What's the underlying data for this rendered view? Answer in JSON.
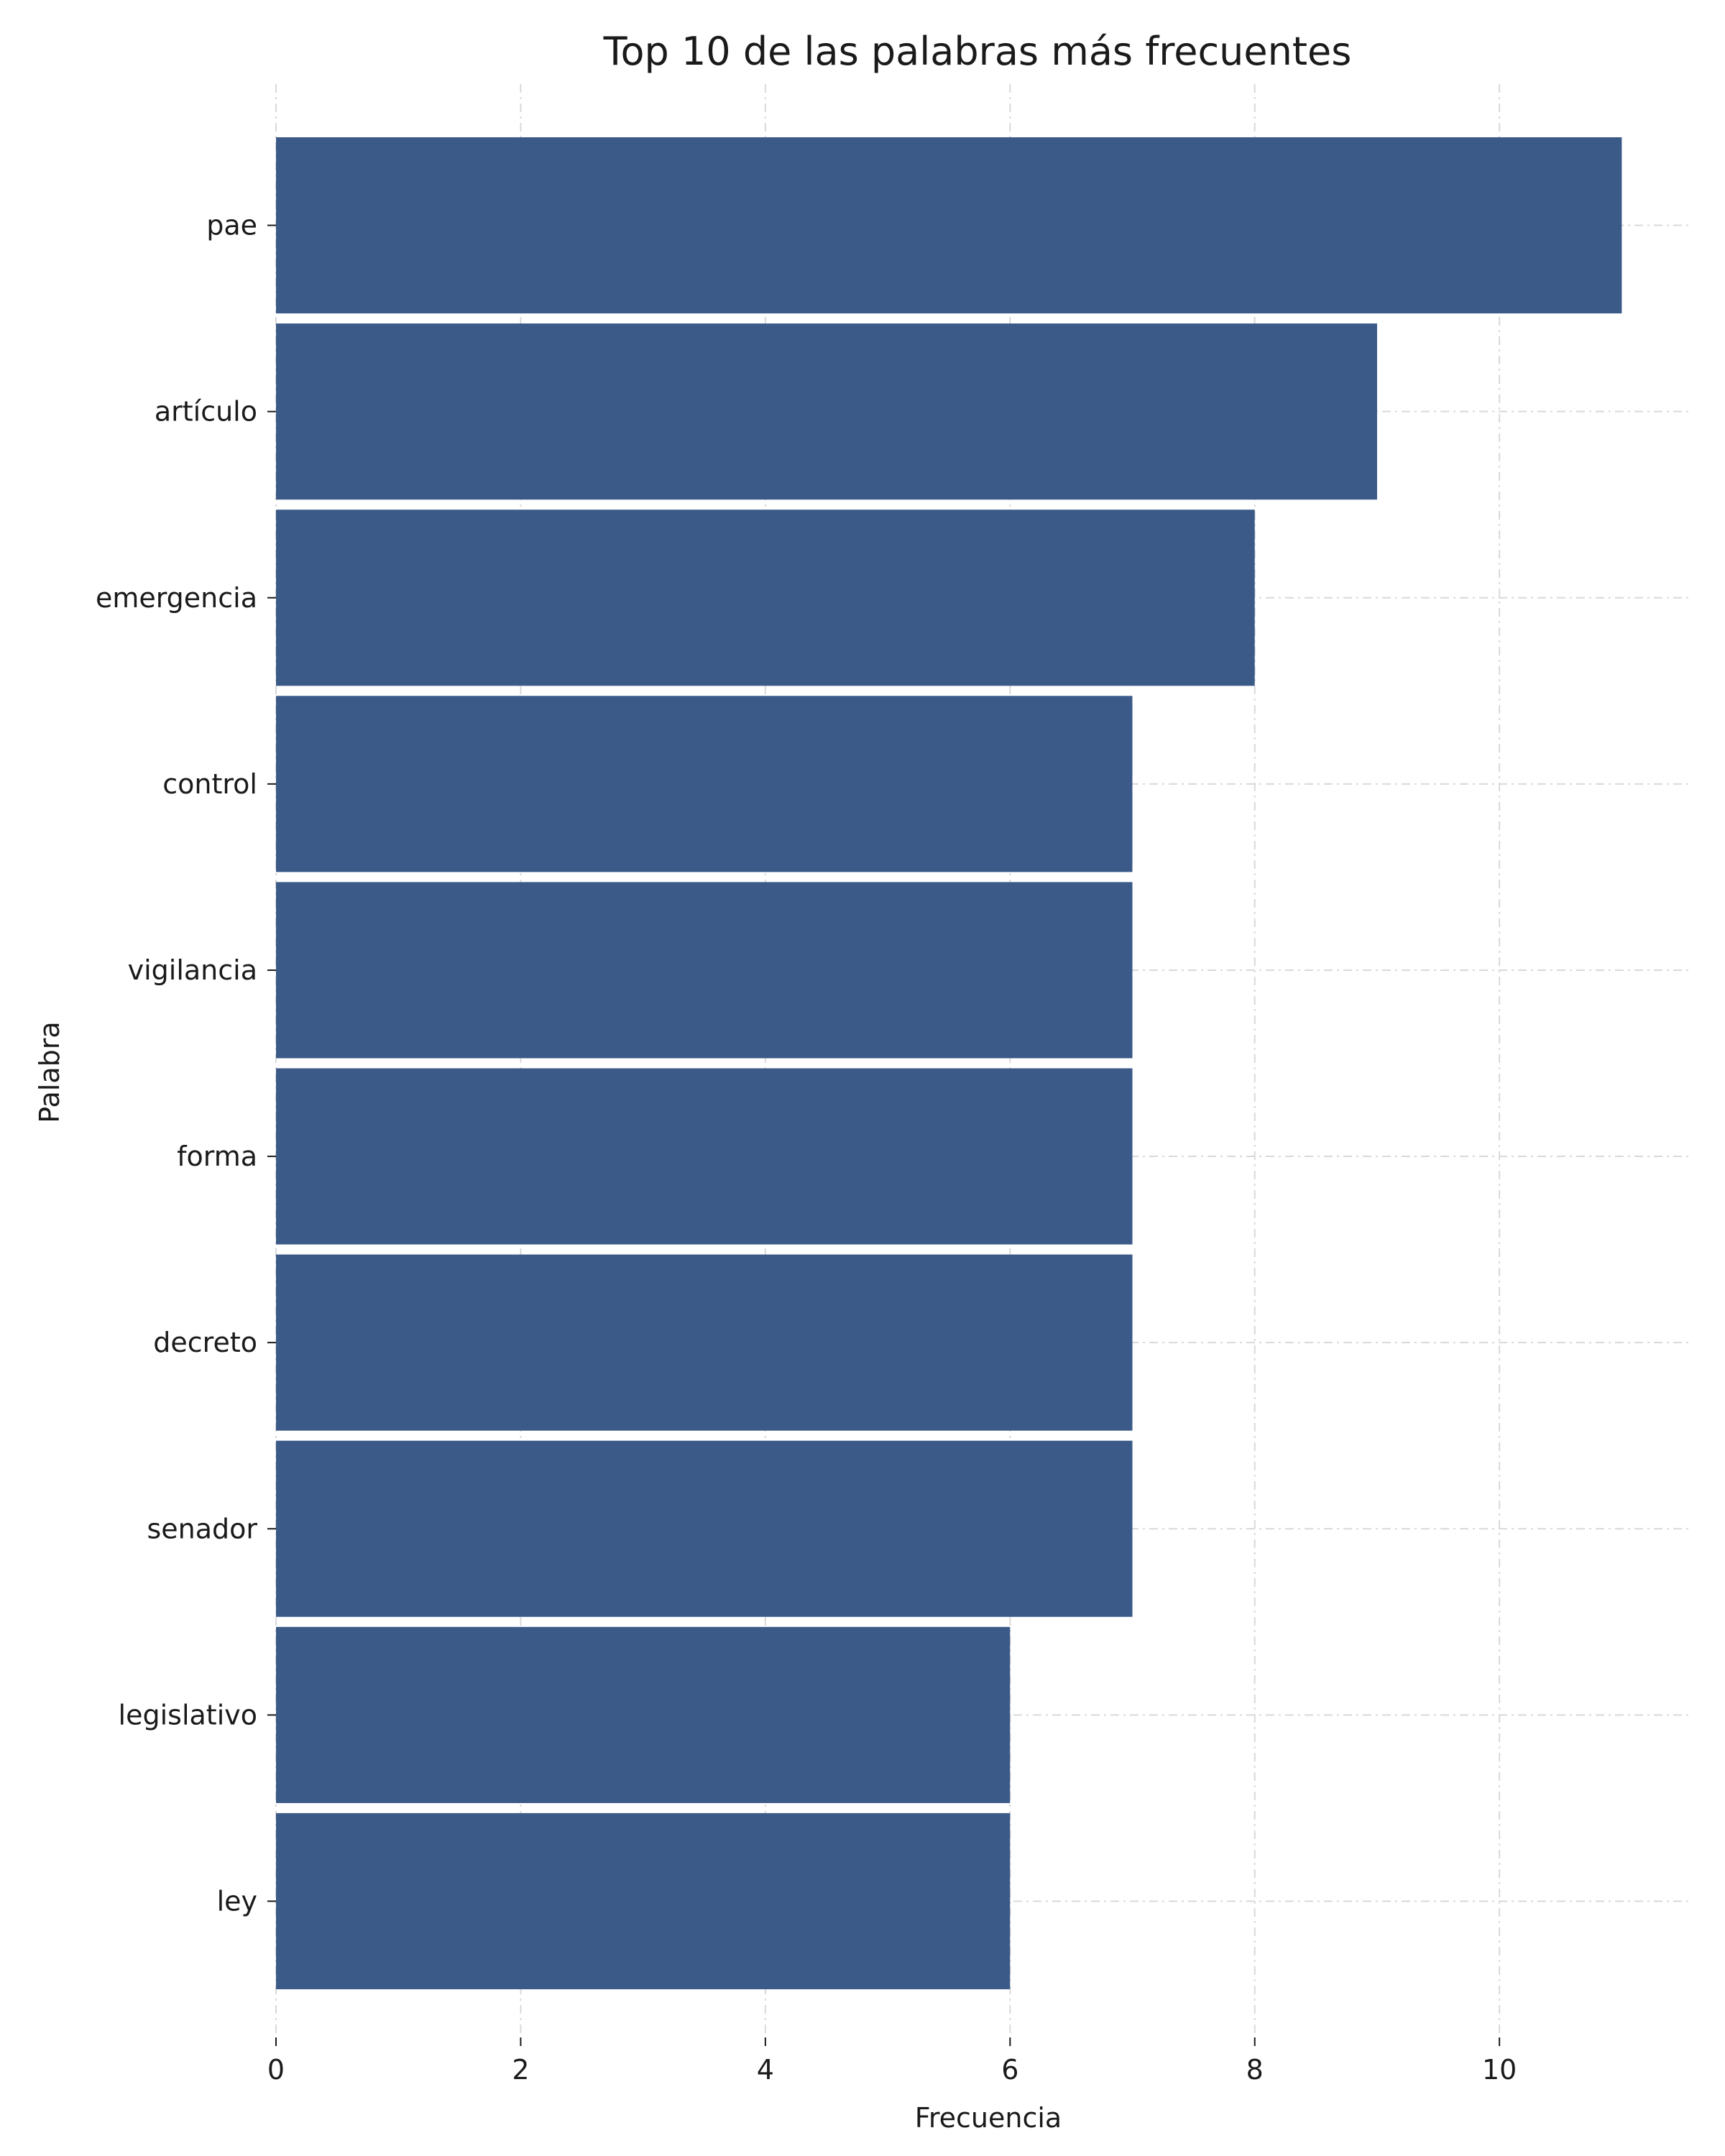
{
  "chart_data": {
    "type": "bar",
    "orientation": "horizontal",
    "title": "Top 10 de las palabras más frecuentes",
    "xlabel": "Frecuencia",
    "ylabel": "Palabra",
    "categories": [
      "pae",
      "artículo",
      "emergencia",
      "control",
      "vigilancia",
      "forma",
      "decreto",
      "senador",
      "legislativo",
      "ley"
    ],
    "values": [
      11,
      9,
      8,
      7,
      7,
      7,
      7,
      7,
      6,
      6
    ],
    "xlim": [
      0,
      11.55
    ],
    "xticks": [
      0,
      2,
      4,
      6,
      8,
      10
    ],
    "grid": true,
    "bar_color": "#3b5a88"
  }
}
